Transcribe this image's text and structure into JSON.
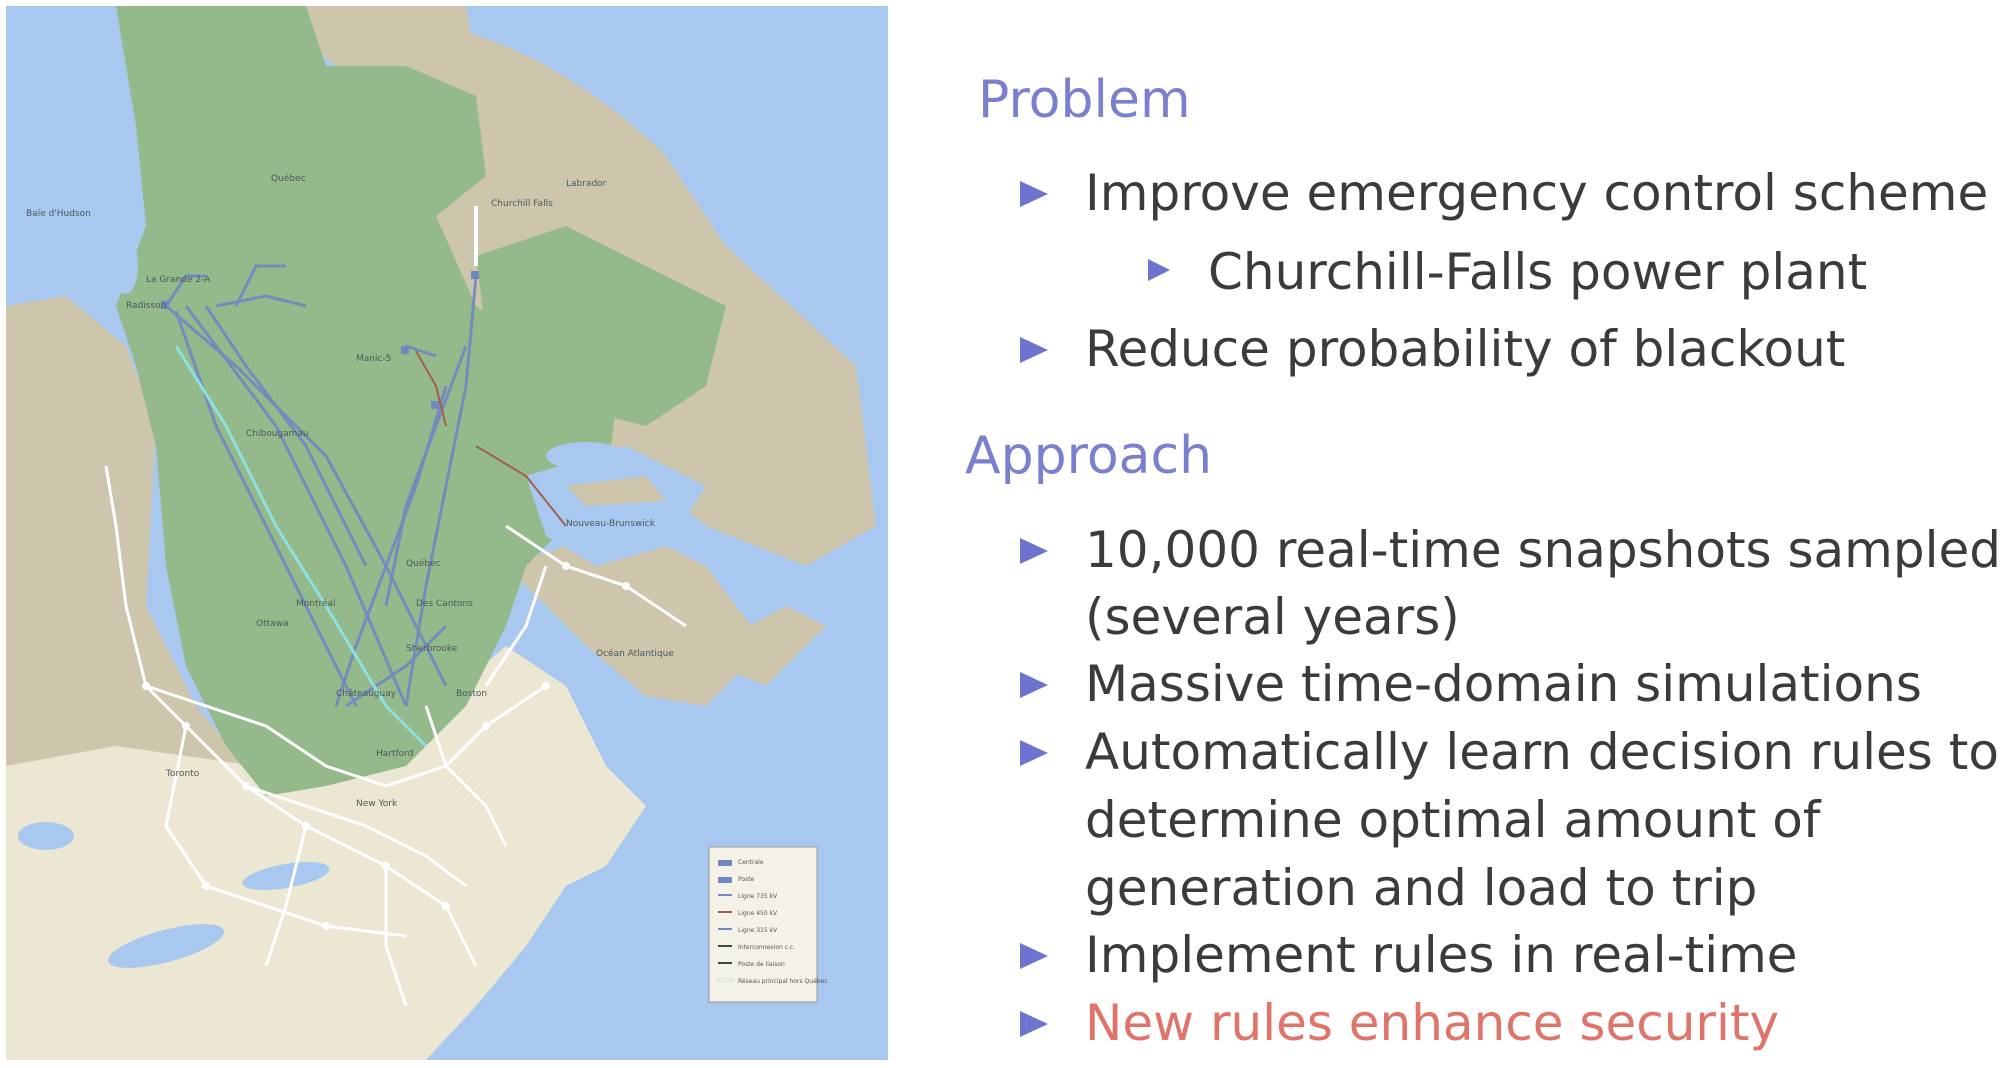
{
  "slide": {
    "sections": [
      {
        "heading": "Problem",
        "items": [
          {
            "text": "Improve emergency control scheme",
            "level": 1
          },
          {
            "text": "Churchill-Falls power plant",
            "level": 2
          },
          {
            "text": "Reduce probability of blackout",
            "level": 1
          }
        ]
      },
      {
        "heading": "Approach",
        "items": [
          {
            "lines": [
              "10,000 real-time snapshots sampled",
              "(several years)"
            ],
            "level": 1
          },
          {
            "text": "Massive time-domain simulations",
            "level": 1
          },
          {
            "lines": [
              "Automatically learn decision rules to",
              "determine optimal amount of",
              "generation and load to trip"
            ],
            "level": 1
          },
          {
            "text": "Implement rules in real-time",
            "level": 1
          },
          {
            "text": "New rules enhance security",
            "level": 1,
            "highlight": true
          }
        ]
      }
    ]
  },
  "map": {
    "colors": {
      "water": "#a9c8ef",
      "quebec": "#94b98a",
      "land": "#cdc6ad",
      "us": "#ece7d2",
      "lines": "#7287c2",
      "dc_line": "#8ee0e0",
      "export": "#ffffff",
      "tie": "#a06050"
    },
    "labels": {
      "quebec": "Québec",
      "la_grande": "La Grande 2-A",
      "radisson": "Radisson",
      "chibougamau": "Chibougamau",
      "manic": "Manic-5",
      "churchill": "Churchill Falls",
      "montreal": "Montréal",
      "quebec_city": "Québec",
      "ottawa": "Ottawa",
      "toronto": "Toronto",
      "boston": "Boston",
      "new_york": "New York",
      "hartford": "Hartford",
      "des_cantons": "Des Cantons",
      "sherbrooke": "Sherbrooke",
      "chateauguay": "Châteauguay",
      "moncton": "Nouveau-Brunswick",
      "ocean": "Océan Atlantique",
      "hudson": "Baie d'Hudson",
      "labrador": "Labrador"
    },
    "legend": [
      "Centrale",
      "Poste",
      "Ligne 735 kV",
      "Ligne 450 kV",
      "Ligne 315 kV",
      "Interconnexion c.c.",
      "Poste de liaison",
      "Réseau principal hors Québec"
    ]
  }
}
